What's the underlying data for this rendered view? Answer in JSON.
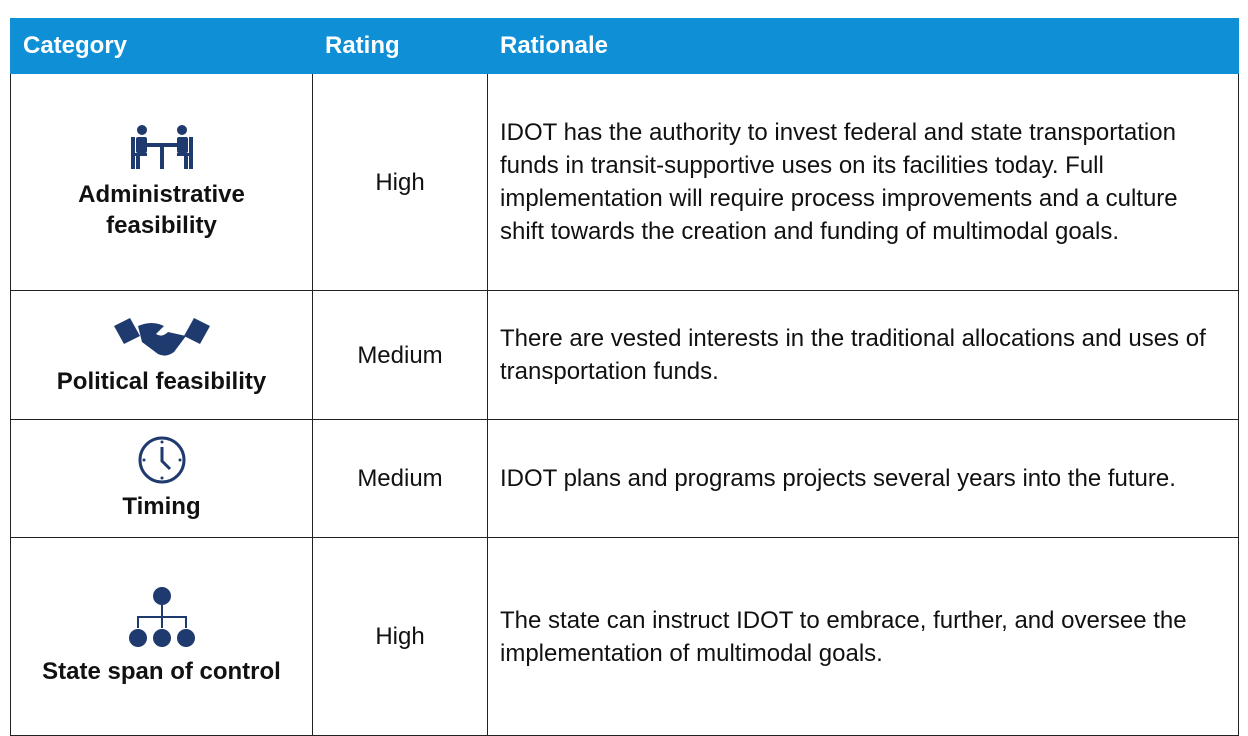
{
  "table": {
    "header": [
      "Category",
      "Rating",
      "Rationale"
    ],
    "rows": [
      [
        "Administrative feasibility",
        "High",
        "IDOT has the authority to invest federal and state transportation funds in transit-supportive uses on its facilities today. Full implementation will require process improvements and a culture shift towards the creation and funding of multimodal goals."
      ],
      [
        "Political feasibility",
        "Medium",
        "There are vested interests in the traditional allocations and uses of transportation funds."
      ],
      [
        "Timing",
        "Medium",
        "IDOT plans and programs projects several years into the future."
      ],
      [
        "State span of control",
        "High",
        "The state can instruct IDOT to embrace, further, and oversee the implementation of multimodal goals."
      ]
    ]
  }
}
